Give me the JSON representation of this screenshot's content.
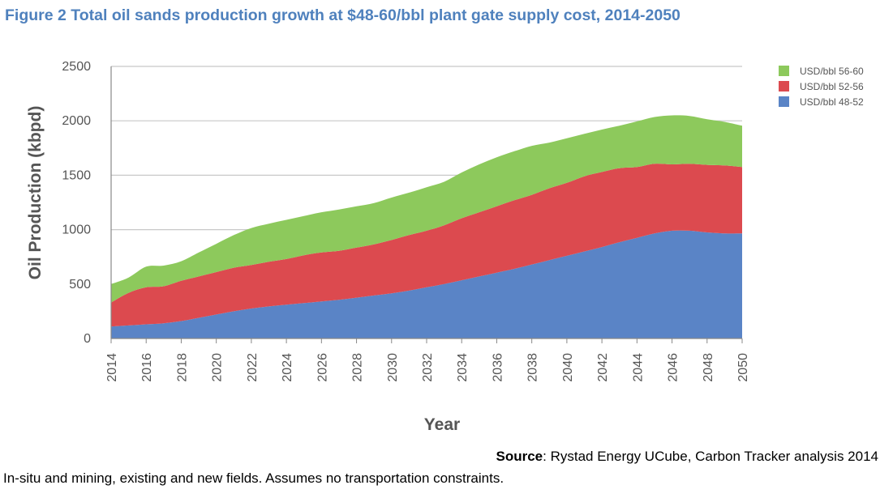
{
  "figure_title": "Figure 2 Total oil sands production growth at $48-60/bbl plant gate supply cost, 2014-2050",
  "source_label": "Source",
  "source_text": ": Rystad Energy UCube, Carbon Tracker analysis 2014",
  "note": "In-situ and mining, existing and new fields. Assumes no transportation constraints.",
  "colors": {
    "title": "#4f81bd",
    "green": "#8dc95c",
    "red": "#dc4a4f",
    "blue": "#5a84c6",
    "grid": "#c8c8c8",
    "text": "#555555"
  },
  "chart_data": {
    "type": "area",
    "stacked": true,
    "title": "",
    "xlabel": "Year",
    "ylabel": "Oil Production (kbpd)",
    "ylim": [
      0,
      2500
    ],
    "yticks": [
      0,
      500,
      1000,
      1500,
      2000,
      2500
    ],
    "x_tick_labels": [
      "2014",
      "2016",
      "2018",
      "2020",
      "2022",
      "2024",
      "2026",
      "2028",
      "2030",
      "2032",
      "2034",
      "2036",
      "2038",
      "2040",
      "2042",
      "2044",
      "2046",
      "2048",
      "2050"
    ],
    "grid": true,
    "legend_position": "top-right",
    "x": [
      2014,
      2015,
      2016,
      2017,
      2018,
      2019,
      2020,
      2021,
      2022,
      2023,
      2024,
      2025,
      2026,
      2027,
      2028,
      2029,
      2030,
      2031,
      2032,
      2033,
      2034,
      2035,
      2036,
      2037,
      2038,
      2039,
      2040,
      2041,
      2042,
      2043,
      2044,
      2045,
      2046,
      2047,
      2048,
      2049,
      2050
    ],
    "series": [
      {
        "name": "USD/bbl 48-52",
        "color": "#5a84c6",
        "values": [
          110,
          120,
          130,
          140,
          160,
          190,
          220,
          250,
          275,
          295,
          310,
          325,
          340,
          355,
          375,
          395,
          415,
          440,
          470,
          500,
          535,
          570,
          605,
          640,
          680,
          720,
          760,
          800,
          840,
          885,
          925,
          965,
          990,
          990,
          975,
          965,
          965
        ]
      },
      {
        "name": "USD/bbl 52-56",
        "color": "#dc4a4f",
        "values": [
          220,
          300,
          340,
          340,
          370,
          380,
          390,
          400,
          400,
          410,
          420,
          440,
          450,
          450,
          460,
          470,
          490,
          510,
          520,
          540,
          570,
          590,
          610,
          630,
          640,
          660,
          670,
          690,
          690,
          680,
          650,
          640,
          610,
          615,
          620,
          625,
          610
        ]
      },
      {
        "name": "USD/bbl 56-60",
        "color": "#8dc95c",
        "values": [
          170,
          140,
          190,
          190,
          180,
          220,
          260,
          300,
          340,
          350,
          360,
          360,
          370,
          380,
          380,
          380,
          390,
          390,
          400,
          400,
          420,
          440,
          450,
          450,
          450,
          420,
          410,
          390,
          390,
          390,
          420,
          430,
          450,
          440,
          420,
          400,
          380
        ]
      }
    ],
    "legend_order": [
      "USD/bbl 56-60",
      "USD/bbl 52-56",
      "USD/bbl 48-52"
    ]
  }
}
